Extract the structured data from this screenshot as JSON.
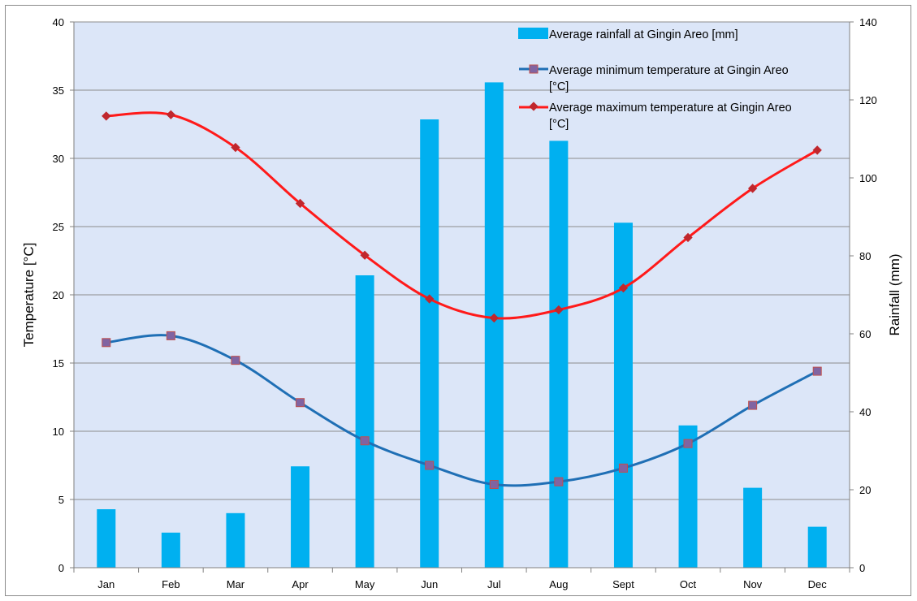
{
  "chart_data": {
    "type": "bar+line",
    "categories": [
      "Jan",
      "Feb",
      "Mar",
      "Apr",
      "May",
      "Jun",
      "Jul",
      "Aug",
      "Sept",
      "Oct",
      "Nov",
      "Dec"
    ],
    "ylabel_left": "Temperature [°C]",
    "ylabel_right": "Rainfall (mm)",
    "ylim_left": [
      0,
      40
    ],
    "ylim_right": [
      0,
      140
    ],
    "yticks_left": [
      "0",
      "5",
      "10",
      "15",
      "20",
      "25",
      "30",
      "35",
      "40"
    ],
    "yticks_right": [
      "0",
      "20",
      "40",
      "60",
      "80",
      "100",
      "120",
      "140"
    ],
    "grid": true,
    "legend_position": "top-right",
    "series": [
      {
        "name": "Average rainfall at Gingin Areo [mm]",
        "kind": "bar",
        "axis": "right",
        "color": "#00b0f0",
        "values": [
          15,
          9,
          14,
          26,
          75,
          115,
          124.5,
          109.5,
          88.5,
          36.5,
          20.5,
          10.5
        ]
      },
      {
        "name": "Average minimum temperature at Gingin Areo [°C]",
        "kind": "line",
        "axis": "left",
        "color": "#1f6fb5",
        "marker": "square",
        "marker_color": "#8064a2",
        "values": [
          16.5,
          17,
          15.2,
          12.1,
          9.3,
          7.5,
          6.1,
          6.3,
          7.3,
          9.1,
          11.9,
          14.4
        ]
      },
      {
        "name": "Average maximum temperature at Gingin Areo [°C]",
        "kind": "line",
        "axis": "left",
        "color": "#ff1a1a",
        "marker": "diamond",
        "marker_color": "#c0272d",
        "values": [
          33.1,
          33.2,
          30.8,
          26.7,
          22.9,
          19.7,
          18.3,
          18.9,
          20.5,
          24.2,
          27.8,
          30.6
        ]
      }
    ]
  }
}
